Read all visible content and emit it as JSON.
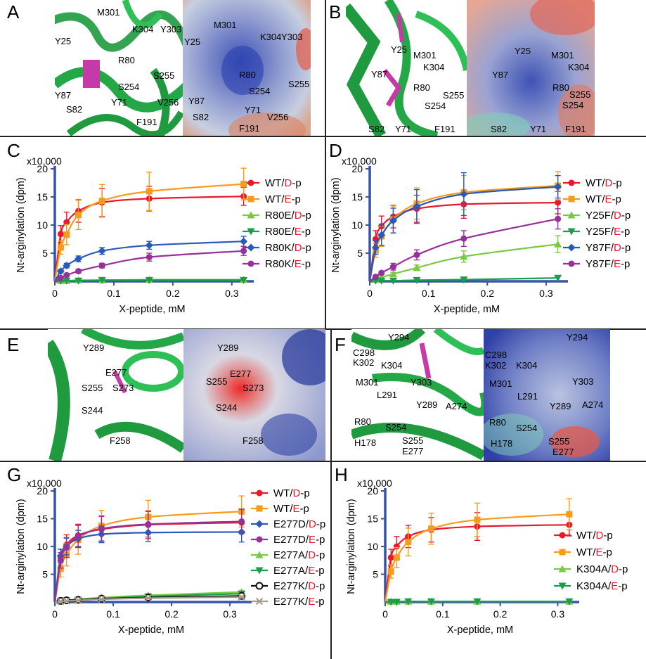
{
  "panel_letters": [
    "A",
    "B",
    "C",
    "D",
    "E",
    "F",
    "G",
    "H"
  ],
  "colors": {
    "wt_d": "#e8192c",
    "wt_e": "#f89b1c",
    "mut1_d": "#7ac943",
    "mut1_e": "#1a9e48",
    "mut2_d": "#2a5ab8",
    "mut2_e": "#96309a",
    "mut3_d": "#111111",
    "mut3_e": "#a89a88",
    "axis": "#3454a8",
    "red_label": "#e8192c"
  },
  "structures": {
    "A": {
      "cartoon_labels": [
        "M301",
        "K304",
        "Y303",
        "Y25",
        "R80",
        "S254",
        "S255",
        "Y87",
        "Y71",
        "V256",
        "S82",
        "F191"
      ],
      "surface_labels": [
        "M301",
        "K304",
        "Y303",
        "Y25",
        "R80",
        "S254",
        "S255",
        "Y87",
        "Y71",
        "S82",
        "V256",
        "F191"
      ]
    },
    "B": {
      "cartoon_labels": [
        "Y25",
        "M301",
        "K304",
        "Y87",
        "R80",
        "S255",
        "S254",
        "S82",
        "Y71",
        "F191"
      ],
      "surface_labels": [
        "Y25",
        "M301",
        "K304",
        "Y87",
        "R80",
        "S255",
        "S254",
        "S82",
        "Y71",
        "F191"
      ]
    },
    "E": {
      "cartoon_labels": [
        "Y289",
        "E277",
        "S255",
        "S273",
        "S244",
        "F258"
      ],
      "surface_labels": [
        "Y289",
        "S255",
        "E277",
        "S273",
        "S244",
        "F258"
      ]
    },
    "F": {
      "cartoon_labels": [
        "Y294",
        "C298",
        "K302",
        "K304",
        "M301",
        "Y303",
        "A274",
        "L291",
        "Y289",
        "R80",
        "S254",
        "S255",
        "H178",
        "E277"
      ],
      "surface_labels": [
        "Y294",
        "C298",
        "K302",
        "K304",
        "Y303",
        "M301",
        "L291",
        "A274",
        "Y289",
        "R80",
        "S254",
        "S255",
        "H178",
        "E277"
      ]
    }
  },
  "chart_data": [
    {
      "panel": "C",
      "type": "line",
      "multiplier": "x10,000",
      "xlabel": "X-peptide, mM",
      "ylabel": "Nt-arginylation (dpm)",
      "xlim": [
        0,
        0.33
      ],
      "ylim": [
        0,
        20
      ],
      "xticks": [
        "0",
        "0.1",
        "0.2",
        "0.3"
      ],
      "yticks": [
        "5",
        "10",
        "15",
        "20"
      ],
      "x": [
        0,
        0.01,
        0.02,
        0.04,
        0.08,
        0.16,
        0.32
      ],
      "series": [
        {
          "name": "WT/D-p",
          "name_parts": [
            "WT/",
            "D",
            "-p"
          ],
          "color": "#e8192c",
          "marker": "circle",
          "values": [
            0,
            8.4,
            10.5,
            12.5,
            14.0,
            14.7,
            15.1
          ],
          "err": [
            0,
            1.5,
            1.8,
            2.0,
            2.5,
            2.2,
            1.6
          ]
        },
        {
          "name": "WT/E-p",
          "name_parts": [
            "WT/",
            "E",
            "-p"
          ],
          "color": "#f89b1c",
          "marker": "square",
          "values": [
            0,
            6.0,
            8.3,
            11.8,
            14.3,
            16.0,
            17.3
          ],
          "err": [
            0,
            1.2,
            1.8,
            2.6,
            2.9,
            3.4,
            2.8
          ]
        },
        {
          "name": "R80E/D-p",
          "name_parts": [
            "R80E/",
            "D",
            "-p"
          ],
          "color": "#7ac943",
          "marker": "triangle-up",
          "values": [
            0,
            0.1,
            0.1,
            0.2,
            0.2,
            0.3,
            0.3
          ],
          "err": [
            0,
            0,
            0,
            0,
            0,
            0,
            0
          ]
        },
        {
          "name": "R80E/E-p",
          "name_parts": [
            "R80E/",
            "E",
            "-p"
          ],
          "color": "#1a9e48",
          "marker": "triangle-down",
          "values": [
            0,
            0.1,
            0.1,
            0.1,
            0.2,
            0.2,
            0.2
          ],
          "err": [
            0,
            0,
            0,
            0,
            0,
            0,
            0
          ]
        },
        {
          "name": "R80K/D-p",
          "name_parts": [
            "R80K/",
            "D",
            "-p"
          ],
          "color": "#2a5ab8",
          "marker": "diamond",
          "values": [
            0,
            1.8,
            2.8,
            4.0,
            5.4,
            6.4,
            7.1
          ],
          "err": [
            0,
            0.3,
            0.4,
            0.5,
            0.6,
            0.7,
            0.9
          ]
        },
        {
          "name": "R80K/E-p",
          "name_parts": [
            "R80K/",
            "E",
            "-p"
          ],
          "color": "#96309a",
          "marker": "circle",
          "values": [
            0,
            0.6,
            1.1,
            1.8,
            2.8,
            4.3,
            5.4
          ],
          "err": [
            0,
            0.1,
            0.2,
            0.3,
            0.4,
            0.7,
            0.8
          ]
        }
      ]
    },
    {
      "panel": "D",
      "type": "line",
      "multiplier": "x10,000",
      "xlabel": "X-peptide, mM",
      "ylabel": "Nt-arginylation (dpm)",
      "xlim": [
        0,
        0.33
      ],
      "ylim": [
        0,
        20
      ],
      "xticks": [
        "0",
        "0.1",
        "0.2",
        "0.3"
      ],
      "yticks": [
        "5",
        "10",
        "15",
        "20"
      ],
      "x": [
        0,
        0.01,
        0.02,
        0.04,
        0.08,
        0.16,
        0.32
      ],
      "series": [
        {
          "name": "WT/D-p",
          "name_parts": [
            "WT/",
            "D",
            "-p"
          ],
          "color": "#e8192c",
          "marker": "circle",
          "values": [
            0,
            7.5,
            9.8,
            11.5,
            12.9,
            13.7,
            14.0
          ],
          "err": [
            0,
            1.5,
            1.8,
            2.0,
            2.4,
            2.5,
            2.0
          ]
        },
        {
          "name": "WT/E-p",
          "name_parts": [
            "WT/",
            "E",
            "-p"
          ],
          "color": "#f89b1c",
          "marker": "square",
          "values": [
            0,
            5.5,
            8.0,
            11.0,
            13.8,
            15.8,
            17.0
          ],
          "err": [
            0,
            1.2,
            1.8,
            2.4,
            2.8,
            3.0,
            2.5
          ]
        },
        {
          "name": "Y25F/D-p",
          "name_parts": [
            "Y25F/",
            "D",
            "-p"
          ],
          "color": "#7ac943",
          "marker": "triangle-up",
          "values": [
            0,
            0.3,
            0.7,
            1.3,
            2.4,
            4.4,
            6.6
          ],
          "err": [
            0,
            0.1,
            0.2,
            0.3,
            0.5,
            1.0,
            1.5
          ]
        },
        {
          "name": "Y25F/E-p",
          "name_parts": [
            "Y25F/",
            "E",
            "-p"
          ],
          "color": "#1a9e48",
          "marker": "triangle-down",
          "values": [
            0,
            0.1,
            0.1,
            0.1,
            0.2,
            0.3,
            0.6
          ],
          "err": [
            0,
            0,
            0,
            0,
            0,
            0,
            0
          ]
        },
        {
          "name": "Y87F/D-p",
          "name_parts": [
            "Y87F/",
            "D",
            "-p"
          ],
          "color": "#2a5ab8",
          "marker": "diamond",
          "values": [
            0,
            6.0,
            8.2,
            10.8,
            13.3,
            15.5,
            16.8
          ],
          "err": [
            0,
            1.2,
            1.8,
            2.2,
            3.0,
            3.8,
            2.0
          ]
        },
        {
          "name": "Y87F/E-p",
          "name_parts": [
            "Y87F/",
            "E",
            "-p"
          ],
          "color": "#96309a",
          "marker": "circle",
          "values": [
            0,
            0.8,
            1.5,
            2.6,
            4.7,
            7.6,
            11.1
          ],
          "err": [
            0,
            0.2,
            0.3,
            0.6,
            0.9,
            1.4,
            1.8
          ]
        }
      ]
    },
    {
      "panel": "G",
      "type": "line",
      "multiplier": "x10,000",
      "xlabel": "X-peptide, mM",
      "ylabel": "Nt-arginylation (dpm)",
      "xlim": [
        0,
        0.33
      ],
      "ylim": [
        0,
        20
      ],
      "xticks": [
        "0",
        "0.1",
        "0.2",
        "0.3"
      ],
      "yticks": [
        "5",
        "10",
        "15",
        "20"
      ],
      "x": [
        0,
        0.01,
        0.02,
        0.04,
        0.08,
        0.16,
        0.32
      ],
      "series": [
        {
          "name": "WT/D-p",
          "name_parts": [
            "WT/",
            "D",
            "-p"
          ],
          "color": "#e8192c",
          "marker": "circle",
          "values": [
            0,
            8.0,
            10.3,
            12.0,
            13.1,
            13.9,
            14.3
          ],
          "err": [
            0,
            1.5,
            1.8,
            2.0,
            2.4,
            2.5,
            2.0
          ]
        },
        {
          "name": "WT/E-p",
          "name_parts": [
            "WT/",
            "E",
            "-p"
          ],
          "color": "#f89b1c",
          "marker": "square",
          "values": [
            0,
            6.0,
            8.5,
            11.2,
            13.7,
            15.3,
            16.3
          ],
          "err": [
            0,
            1.5,
            2.0,
            2.6,
            2.8,
            3.0,
            2.8
          ]
        },
        {
          "name": "E277D/D-p",
          "name_parts": [
            "E277D/",
            "D",
            "-p"
          ],
          "color": "#2a5ab8",
          "marker": "diamond",
          "values": [
            0,
            8.3,
            10.0,
            11.4,
            12.2,
            12.5,
            12.6
          ],
          "err": [
            0,
            1.2,
            1.5,
            1.5,
            1.5,
            1.6,
            1.8
          ]
        },
        {
          "name": "E277D/E-p",
          "name_parts": [
            "E277D/",
            "E",
            "-p"
          ],
          "color": "#96309a",
          "marker": "circle",
          "values": [
            0,
            7.5,
            9.8,
            11.8,
            13.2,
            14.0,
            14.5
          ],
          "err": [
            0,
            1.4,
            1.8,
            2.0,
            2.2,
            2.3,
            2.2
          ]
        },
        {
          "name": "E277A/D-p",
          "name_parts": [
            "E277A/",
            "D",
            "-p"
          ],
          "color": "#7ac943",
          "marker": "triangle-up",
          "values": [
            0,
            0.2,
            0.3,
            0.5,
            0.8,
            1.2,
            1.8
          ],
          "err": [
            0,
            0,
            0,
            0.1,
            0.1,
            0.2,
            0.2
          ]
        },
        {
          "name": "E277A/E-p",
          "name_parts": [
            "E277A/",
            "E",
            "-p"
          ],
          "color": "#1a9e48",
          "marker": "triangle-down",
          "values": [
            0,
            0.2,
            0.3,
            0.4,
            0.6,
            1.0,
            1.5
          ],
          "err": [
            0,
            0,
            0,
            0.1,
            0.1,
            0.2,
            0.2
          ]
        },
        {
          "name": "E277K/D-p",
          "name_parts": [
            "E277K/",
            "D",
            "-p"
          ],
          "color": "#111111",
          "marker": "open-circle",
          "values": [
            0,
            0.2,
            0.3,
            0.4,
            0.6,
            0.8,
            1.1
          ],
          "err": [
            0,
            0,
            0,
            0.1,
            0.1,
            0.1,
            0.2
          ]
        },
        {
          "name": "E277K/E-p",
          "name_parts": [
            "E277K/",
            "E",
            "-p"
          ],
          "color": "#a89a88",
          "marker": "cross",
          "values": [
            0,
            0.1,
            0.2,
            0.3,
            0.5,
            0.7,
            0.9
          ],
          "err": [
            0,
            0,
            0,
            0,
            0.1,
            0.1,
            0.1
          ]
        }
      ]
    },
    {
      "panel": "H",
      "type": "line",
      "multiplier": "x10,000",
      "xlabel": "X-peptide, mM",
      "ylabel": "Nt-arginylation (dpm)",
      "xlim": [
        0,
        0.33
      ],
      "ylim": [
        0,
        20
      ],
      "xticks": [
        "0",
        "0.1",
        "0.2",
        "0.3"
      ],
      "yticks": [
        "5",
        "10",
        "15",
        "20"
      ],
      "x": [
        0,
        0.01,
        0.02,
        0.04,
        0.08,
        0.16,
        0.32
      ],
      "series": [
        {
          "name": "WT/D-p",
          "name_parts": [
            "WT/",
            "D",
            "-p"
          ],
          "color": "#e8192c",
          "marker": "circle",
          "values": [
            0,
            8.0,
            10.0,
            11.8,
            13.0,
            13.6,
            13.9
          ],
          "err": [
            0,
            1.5,
            1.8,
            2.0,
            2.2,
            2.5,
            2.0
          ]
        },
        {
          "name": "WT/E-p",
          "name_parts": [
            "WT/",
            "E",
            "-p"
          ],
          "color": "#f89b1c",
          "marker": "square",
          "values": [
            0,
            5.5,
            8.0,
            10.8,
            13.2,
            14.8,
            15.8
          ],
          "err": [
            0,
            1.2,
            1.8,
            2.5,
            2.8,
            3.0,
            2.8
          ]
        },
        {
          "name": "K304A/D-p",
          "name_parts": [
            "K304A/",
            "D",
            "-p"
          ],
          "color": "#7ac943",
          "marker": "triangle-up",
          "values": [
            0,
            0.1,
            0.1,
            0.1,
            0.1,
            0.1,
            0.1
          ],
          "err": [
            0,
            0,
            0,
            0,
            0,
            0,
            0
          ]
        },
        {
          "name": "K304A/E-p",
          "name_parts": [
            "K304A/",
            "E",
            "-p"
          ],
          "color": "#1a9e48",
          "marker": "triangle-down",
          "values": [
            0,
            0.0,
            0.0,
            0.1,
            0.1,
            0.1,
            0.1
          ],
          "err": [
            0,
            0,
            0,
            0,
            0,
            0,
            0
          ]
        }
      ]
    }
  ]
}
